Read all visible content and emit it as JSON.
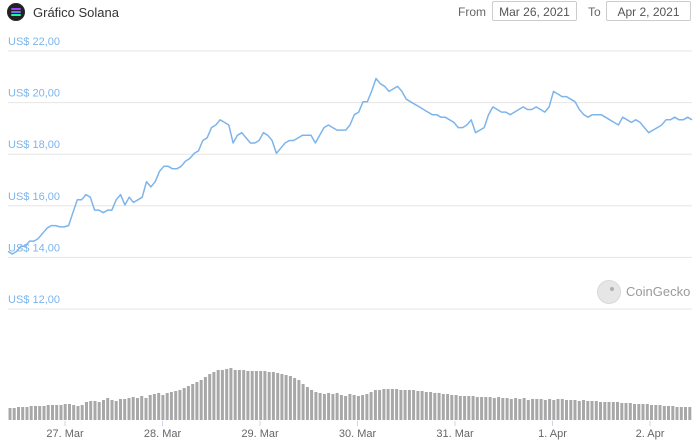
{
  "header": {
    "title": "Gráfico Solana",
    "from_label": "From",
    "from_value": "Mar 26, 2021",
    "to_label": "To",
    "to_value": "Apr 2, 2021"
  },
  "watermark": "CoinGecko",
  "colors": {
    "line": "#7cb5ec",
    "volume": "#a8a8a8",
    "grid": "#e6e6e6",
    "axis_text": "#7cb5ec",
    "date_text": "#666666"
  },
  "chart_data": {
    "type": "line",
    "title": "Gráfico Solana",
    "y_ticks": [
      "US$ 22,00",
      "US$ 20,00",
      "US$ 18,00",
      "US$ 16,00",
      "US$ 14,00",
      "US$ 12,00"
    ],
    "ylim": [
      12,
      22
    ],
    "x_ticks": [
      "27. Mar",
      "28. Mar",
      "29. Mar",
      "30. Mar",
      "31. Mar",
      "1. Apr",
      "2. Apr"
    ],
    "grid": true,
    "legend": "none",
    "series": [
      {
        "values": [
          14.0,
          13.9,
          14.0,
          14.2,
          14.2,
          14.4,
          14.4,
          14.5,
          14.7,
          14.9,
          15.0,
          15.0,
          14.95,
          14.95,
          15.0,
          15.5,
          16.0,
          16.0,
          16.2,
          16.1,
          15.6,
          15.6,
          15.5,
          15.6,
          15.6,
          16.0,
          16.2,
          15.8,
          16.1,
          15.9,
          16.0,
          16.1,
          16.7,
          16.5,
          16.7,
          17.1,
          17.3,
          17.3,
          17.2,
          17.2,
          17.3,
          17.5,
          17.6,
          17.8,
          17.9,
          18.3,
          18.4,
          18.8,
          18.9,
          19.1,
          19.0,
          18.9,
          18.2,
          18.5,
          18.6,
          18.4,
          18.2,
          18.2,
          18.3,
          18.6,
          18.5,
          18.3,
          17.8,
          18.0,
          18.2,
          18.3,
          18.3,
          18.4,
          18.5,
          18.5,
          18.5,
          18.2,
          18.5,
          18.8,
          18.9,
          18.8,
          18.7,
          18.7,
          18.7,
          18.9,
          19.3,
          19.4,
          19.8,
          19.8,
          20.2,
          20.7,
          20.5,
          20.4,
          20.2,
          20.3,
          20.4,
          20.2,
          19.9,
          19.8,
          19.7,
          19.6,
          19.5,
          19.4,
          19.3,
          19.3,
          19.2,
          19.2,
          19.1,
          19.0,
          18.8,
          18.8,
          18.9,
          19.1,
          18.6,
          18.7,
          18.8,
          19.3,
          19.6,
          19.5,
          19.4,
          19.4,
          19.3,
          19.4,
          19.5,
          19.6,
          19.5,
          19.5,
          19.6,
          19.5,
          19.4,
          19.6,
          20.2,
          20.1,
          20.0,
          20.0,
          19.9,
          19.8,
          19.5,
          19.3,
          19.2,
          19.3,
          19.3,
          19.3,
          19.2,
          19.1,
          19.0,
          18.9,
          19.2,
          19.1,
          19.0,
          19.1,
          19.0,
          18.8,
          18.6,
          18.7,
          18.8,
          18.9,
          19.1,
          19.1,
          19.2,
          19.1,
          19.1,
          19.2,
          19.1
        ]
      }
    ],
    "volume": [
      0.12,
      0.12,
      0.13,
      0.13,
      0.13,
      0.14,
      0.14,
      0.14,
      0.14,
      0.15,
      0.15,
      0.15,
      0.15,
      0.16,
      0.16,
      0.15,
      0.14,
      0.15,
      0.18,
      0.19,
      0.19,
      0.18,
      0.2,
      0.22,
      0.2,
      0.19,
      0.21,
      0.21,
      0.22,
      0.23,
      0.22,
      0.24,
      0.22,
      0.25,
      0.26,
      0.27,
      0.25,
      0.27,
      0.28,
      0.29,
      0.3,
      0.32,
      0.34,
      0.36,
      0.38,
      0.4,
      0.43,
      0.46,
      0.48,
      0.5,
      0.5,
      0.51,
      0.52,
      0.5,
      0.5,
      0.5,
      0.49,
      0.49,
      0.49,
      0.49,
      0.49,
      0.48,
      0.48,
      0.47,
      0.46,
      0.45,
      0.44,
      0.42,
      0.4,
      0.36,
      0.33,
      0.3,
      0.28,
      0.27,
      0.26,
      0.27,
      0.26,
      0.27,
      0.25,
      0.24,
      0.26,
      0.25,
      0.24,
      0.25,
      0.26,
      0.28,
      0.3,
      0.3,
      0.31,
      0.31,
      0.31,
      0.31,
      0.3,
      0.3,
      0.3,
      0.3,
      0.29,
      0.29,
      0.28,
      0.28,
      0.27,
      0.27,
      0.26,
      0.26,
      0.25,
      0.25,
      0.24,
      0.24,
      0.24,
      0.24,
      0.23,
      0.23,
      0.23,
      0.23,
      0.22,
      0.23,
      0.22,
      0.22,
      0.21,
      0.22,
      0.21,
      0.22,
      0.2,
      0.21,
      0.21,
      0.21,
      0.2,
      0.21,
      0.2,
      0.21,
      0.21,
      0.2,
      0.2,
      0.2,
      0.19,
      0.2,
      0.19,
      0.19,
      0.19,
      0.18,
      0.18,
      0.18,
      0.18,
      0.18,
      0.17,
      0.17,
      0.17,
      0.16,
      0.16,
      0.16,
      0.16,
      0.15,
      0.15,
      0.15,
      0.14,
      0.14,
      0.14,
      0.13,
      0.13,
      0.13,
      0.13
    ]
  }
}
